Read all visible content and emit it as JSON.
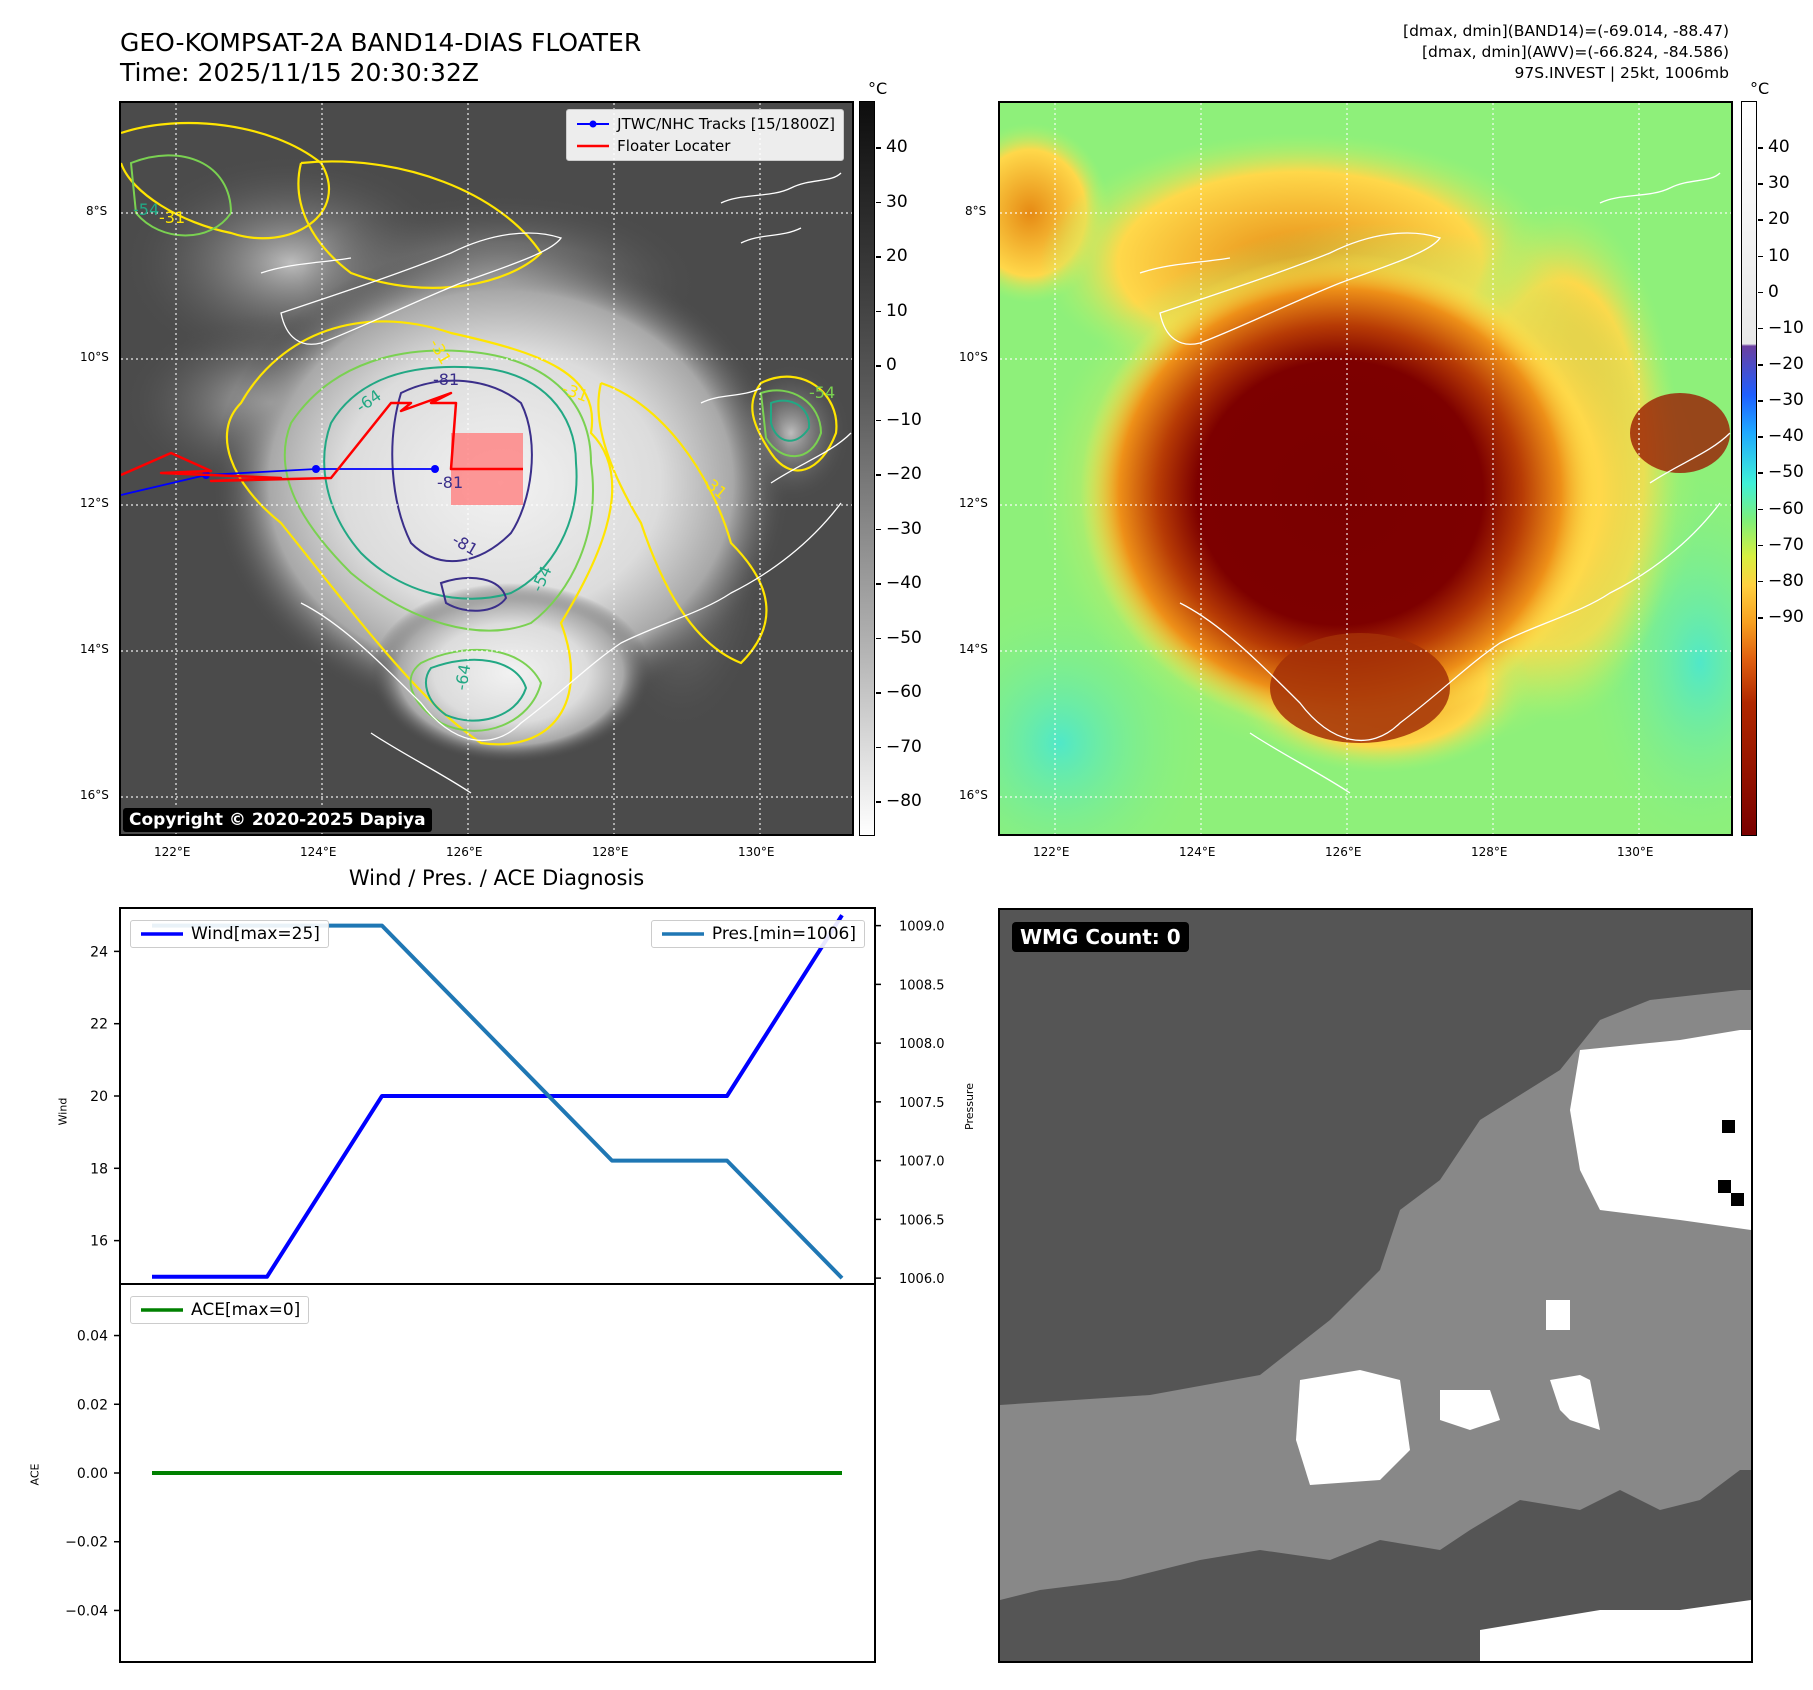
{
  "header": {
    "title_line1": "GEO-KOMPSAT-2A BAND14-DIAS FLOATER",
    "title_line2": "Time: 2025/11/15 20:30:32Z",
    "info_line1": "[dmax, dmin](BAND14)=(-69.014, -88.47)",
    "info_line2": "[dmax, dmin](AWV)=(-66.824, -84.586)",
    "info_line3": "97S.INVEST | 25kt, 1006mb"
  },
  "map_axes": {
    "lat_labels": [
      "8°S",
      "10°S",
      "12°S",
      "14°S",
      "16°S"
    ],
    "lon_labels": [
      "122°E",
      "124°E",
      "126°E",
      "128°E",
      "130°E"
    ]
  },
  "band14_panel": {
    "unit": "°C",
    "colorbar_ticks": [
      "40",
      "30",
      "20",
      "10",
      "0",
      "−10",
      "−20",
      "−30",
      "−40",
      "−50",
      "−60",
      "−70",
      "−80"
    ],
    "legend_tracks": "JTWC/NHC Tracks [15/1800Z]",
    "legend_floater": "Floater Locater",
    "copyright": "Copyright © 2020-2025 Dapiya",
    "contour_labels": [
      "-31",
      "-54",
      "-64",
      "-81",
      "-81",
      "-81",
      "-64",
      "-54",
      "-31",
      "-31",
      "-54",
      "-31"
    ],
    "colors": {
      "track": "#0000ff",
      "floater": "#ff0000",
      "c31": "#ffe500",
      "c54": "#7ad151",
      "c64": "#22a884",
      "c81": "#3b2f8a"
    }
  },
  "awv_panel": {
    "unit": "°C",
    "colorbar_ticks": [
      "40",
      "30",
      "20",
      "10",
      "0",
      "−10",
      "−20",
      "−30",
      "−40",
      "−50",
      "−60",
      "−70",
      "−80",
      "−90"
    ]
  },
  "diagnosis": {
    "title": "Wind / Pres. / ACE Diagnosis",
    "wind_label": "Wind",
    "pressure_label": "Pressure",
    "ace_label": "ACE",
    "wind_legend": "Wind[max=25]",
    "pres_legend": "Pres.[min=1006]",
    "ace_legend": "ACE[max=0]"
  },
  "wmg": {
    "badge": "WMG Count: 0"
  },
  "chart_data": [
    {
      "type": "line",
      "title": "Wind / Pres. / ACE Diagnosis",
      "ylabel": "Wind",
      "y2label": "Pressure",
      "x": [
        0,
        1,
        2,
        3,
        4,
        5,
        6
      ],
      "series": [
        {
          "name": "Wind[max=25]",
          "axis": "left",
          "color": "#0000ff",
          "values": [
            15,
            15,
            20,
            20,
            20,
            20,
            25
          ]
        },
        {
          "name": "Pres.[min=1006]",
          "axis": "right",
          "color": "#1f77b4",
          "values": [
            1009,
            1009,
            1009,
            1008,
            1007,
            1007,
            1006
          ]
        }
      ],
      "ylim": [
        14.8,
        25.2
      ],
      "y2lim": [
        1005.95,
        1009.15
      ],
      "yticks": [
        16,
        18,
        20,
        22,
        24
      ],
      "y2ticks": [
        "1006.0",
        "1006.5",
        "1007.0",
        "1007.5",
        "1008.0",
        "1008.5",
        "1009.0"
      ]
    },
    {
      "type": "line",
      "ylabel": "ACE",
      "x": [
        0,
        1,
        2,
        3,
        4,
        5,
        6
      ],
      "series": [
        {
          "name": "ACE[max=0]",
          "color": "#008000",
          "values": [
            0,
            0,
            0,
            0,
            0,
            0,
            0
          ]
        }
      ],
      "ylim": [
        -0.055,
        0.055
      ],
      "yticks": [
        "0.04",
        "0.02",
        "0.00",
        "−0.02",
        "−0.04"
      ]
    }
  ]
}
